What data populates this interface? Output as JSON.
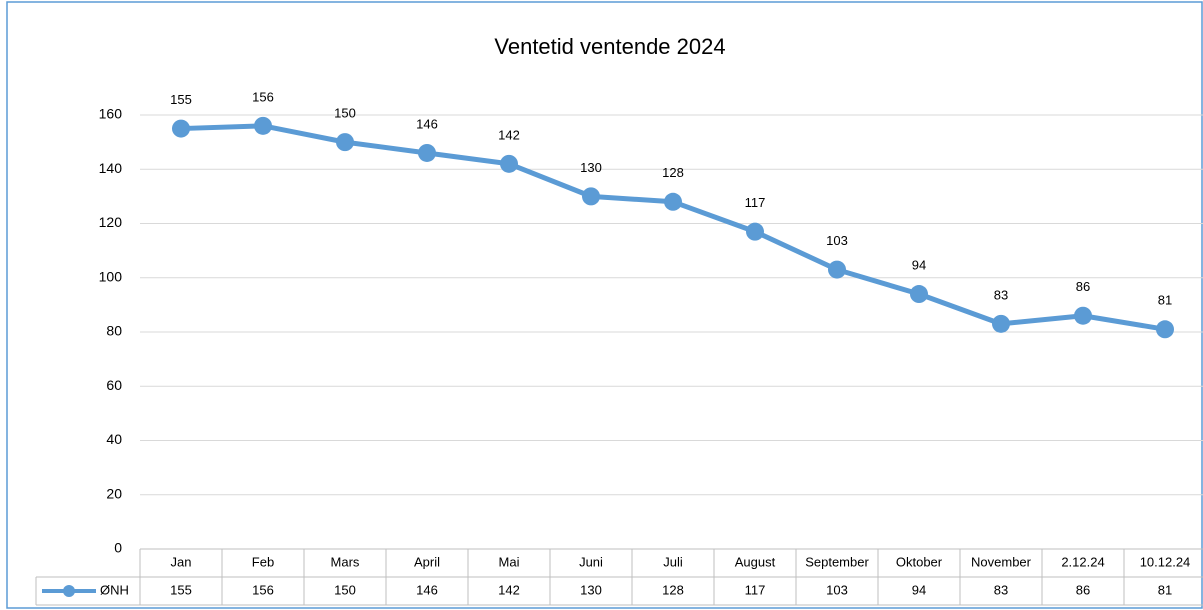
{
  "chart_data": {
    "type": "line",
    "title": "Ventetid ventende 2024",
    "categories": [
      "Jan",
      "Feb",
      "Mars",
      "April",
      "Mai",
      "Juni",
      "Juli",
      "August",
      "September",
      "Oktober",
      "November",
      "2.12.24",
      "10.12.24"
    ],
    "series": [
      {
        "name": "ØNH",
        "color": "#5b9bd5",
        "values": [
          155,
          156,
          150,
          146,
          142,
          130,
          128,
          117,
          103,
          94,
          83,
          86,
          81
        ]
      }
    ],
    "ylim": [
      0,
      160
    ],
    "yticks": [
      0,
      20,
      40,
      60,
      80,
      100,
      120,
      140,
      160
    ],
    "grid": true,
    "data_table": true
  }
}
